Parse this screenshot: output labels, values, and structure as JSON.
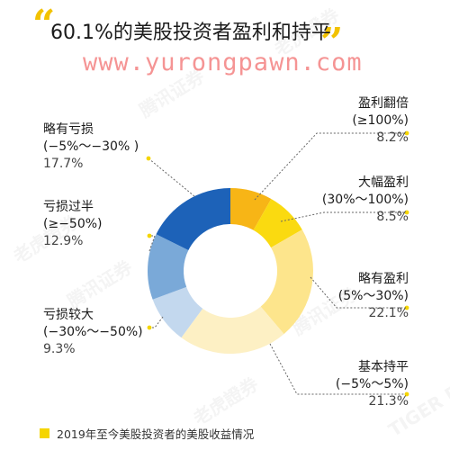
{
  "title": "60.1%的美股投资者盈利和持平",
  "watermark_url": "www.yurongpawn.com",
  "watermark_marks": [
    "腾讯证券",
    "老虎證券",
    "TIGER BROKERS"
  ],
  "legend_text": "2019年至今美股投资者的美股收益情况",
  "colors": {
    "accent": "#f5d500",
    "quote": "#f2c200",
    "leader": "#666666"
  },
  "chart_data": {
    "type": "pie",
    "donut": true,
    "start_angle_deg": 0,
    "direction": "clockwise",
    "slices": [
      {
        "name": "盈利翻倍",
        "range": "(≥100%)",
        "value": 8.2,
        "value_label": "8.2%",
        "color": "#f7b516"
      },
      {
        "name": "大幅盈利",
        "range": "(30%～100%)",
        "value": 8.5,
        "value_label": "8.5%",
        "color": "#fada10"
      },
      {
        "name": "略有盈利",
        "range": "(5%～30%)",
        "value": 22.1,
        "value_label": "22.1%",
        "color": "#fde58c"
      },
      {
        "name": "基本持平",
        "range": "(−5%～5%)",
        "value": 21.3,
        "value_label": "21.3%",
        "color": "#fdf0c4"
      },
      {
        "name": "亏损较大",
        "range": "(−30%～−50%)",
        "value": 9.3,
        "value_label": "9.3%",
        "color": "#c3d8ee"
      },
      {
        "name": "亏损过半",
        "range": "(≥−50%)",
        "value": 12.9,
        "value_label": "12.9%",
        "color": "#7aa9d8"
      },
      {
        "name": "略有亏损",
        "range": "(−5%～−30% )",
        "value": 17.7,
        "value_label": "17.7%",
        "color": "#1d62b8"
      }
    ]
  }
}
